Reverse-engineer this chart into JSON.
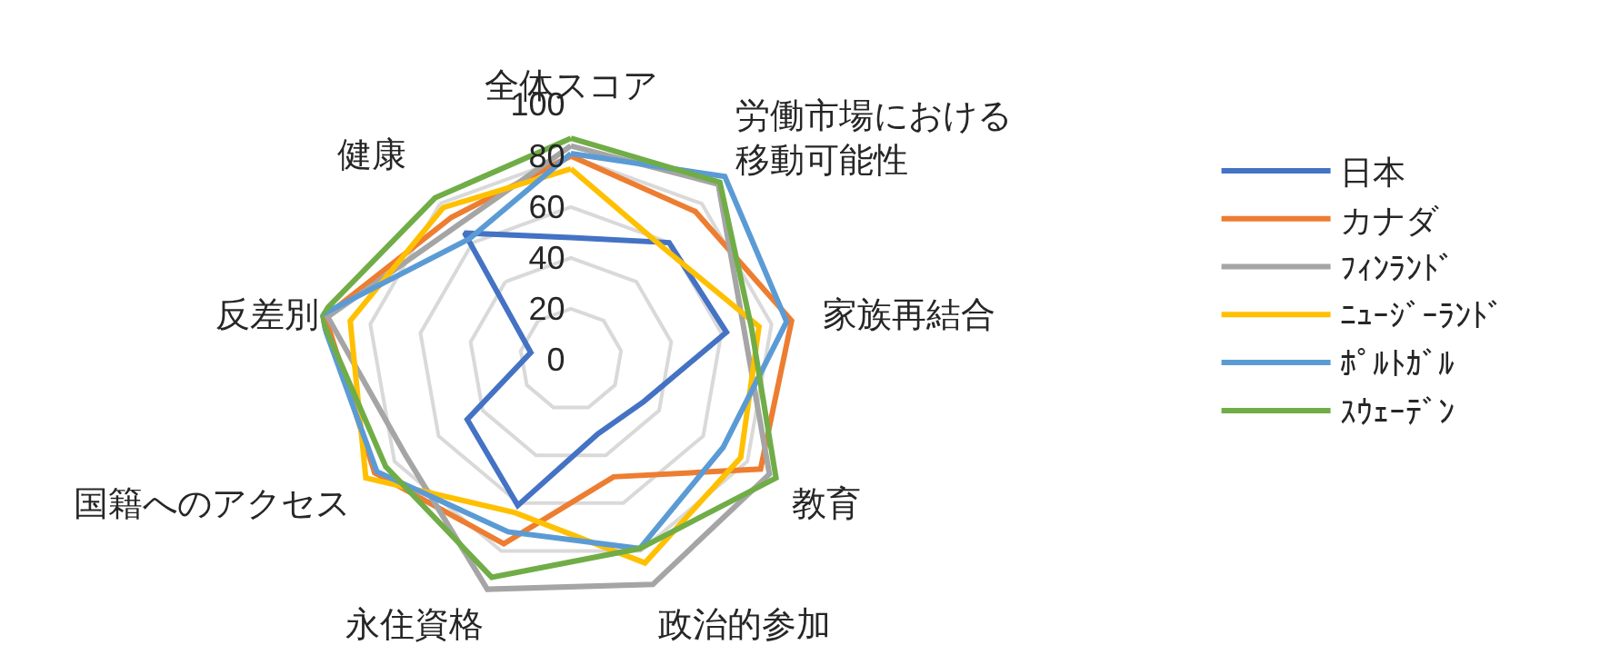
{
  "chart_data": {
    "type": "radar",
    "categories": [
      "全体スコア",
      "労働市場における移動可能性",
      "家族再結合",
      "教育",
      "政治的参加",
      "永住資格",
      "国籍へのアクセス",
      "反差別",
      "健康"
    ],
    "series": [
      {
        "name": "日本",
        "color": "#4472c4",
        "values": [
          48,
          60,
          62,
          33,
          31,
          61,
          47,
          16,
          65
        ]
      },
      {
        "name": "カナダ",
        "color": "#ed7d31",
        "values": [
          80,
          76,
          88,
          86,
          49,
          77,
          89,
          98,
          73
        ]
      },
      {
        "name": "ﾌｨﾝﾗﾝﾄﾞ",
        "color": "#a5a5a5",
        "values": [
          84,
          90,
          69,
          90,
          94,
          96,
          75,
          97,
          69
        ]
      },
      {
        "name": "ﾆｭｰｼﾞｰﾗﾝﾄﾞ",
        "color": "#ffc000",
        "values": [
          75,
          57,
          75,
          77,
          85,
          64,
          93,
          88,
          78
        ]
      },
      {
        "name": "ﾎﾟﾙﾄｶﾞﾙ",
        "color": "#5b9bd5",
        "values": [
          81,
          94,
          86,
          69,
          79,
          72,
          88,
          100,
          62
        ]
      },
      {
        "name": "ｽｳｪｰﾃﾞﾝ",
        "color": "#70ad47",
        "values": [
          87,
          91,
          72,
          93,
          79,
          91,
          84,
          100,
          83
        ]
      }
    ],
    "ylim": [
      0,
      100
    ],
    "yticks": [
      0,
      20,
      40,
      60,
      80,
      100
    ],
    "grid": true,
    "legend": "right",
    "line_style": "solid",
    "marker": "none"
  }
}
